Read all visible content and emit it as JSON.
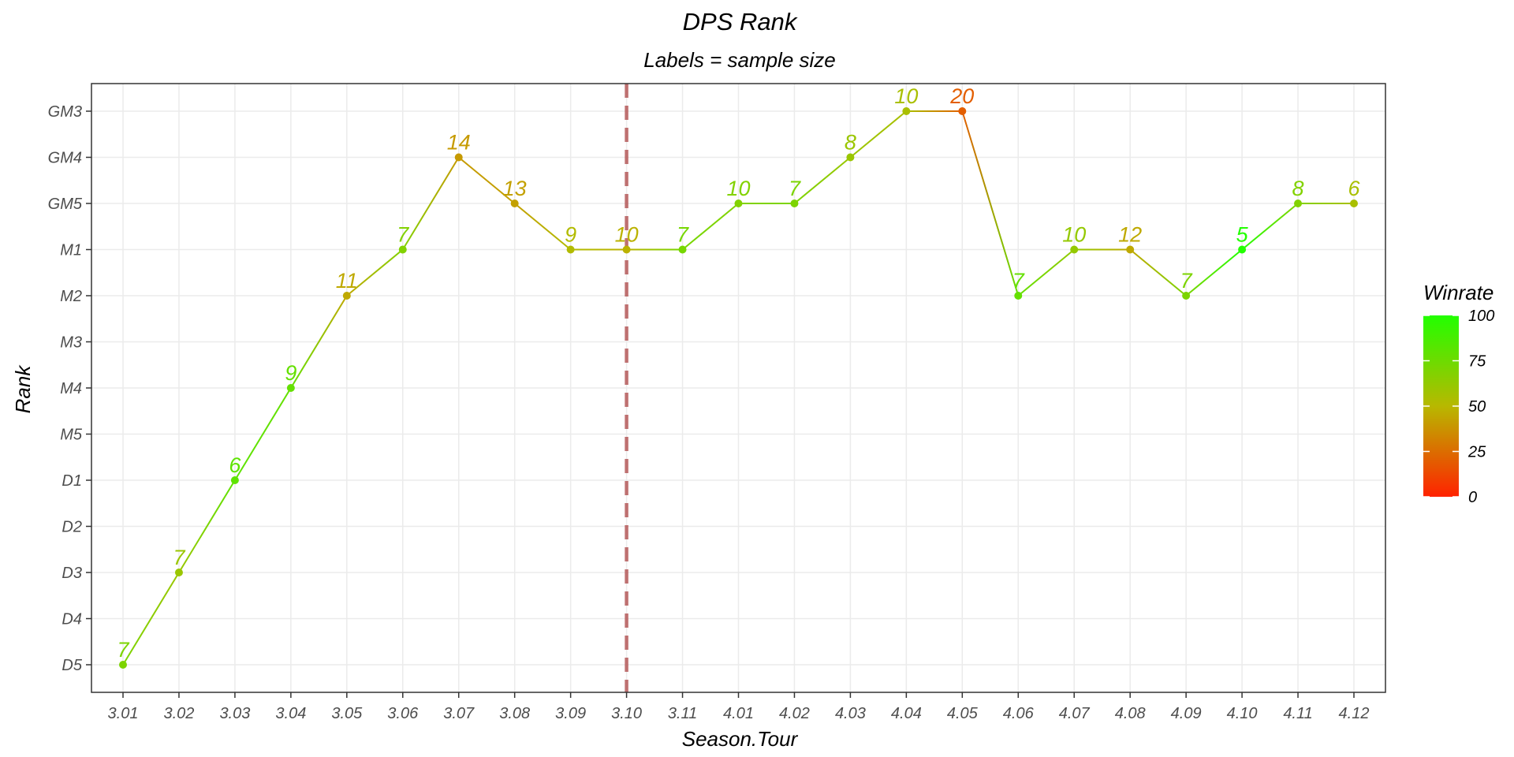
{
  "chart_data": {
    "type": "line",
    "title": "DPS Rank",
    "subtitle": "Labels = sample size",
    "xlabel": "Season.Tour",
    "ylabel": "Rank",
    "categories": [
      "3.01",
      "3.02",
      "3.03",
      "3.04",
      "3.05",
      "3.06",
      "3.07",
      "3.08",
      "3.09",
      "3.10",
      "3.11",
      "4.01",
      "4.02",
      "4.03",
      "4.04",
      "4.05",
      "4.06",
      "4.07",
      "4.08",
      "4.09",
      "4.10",
      "4.11",
      "4.12"
    ],
    "rank_levels": [
      "D5",
      "D4",
      "D3",
      "D2",
      "D1",
      "M5",
      "M4",
      "M3",
      "M2",
      "M1",
      "GM5",
      "GM4",
      "GM3"
    ],
    "rank": [
      "D5",
      "D3",
      "D1",
      "M4",
      "M2",
      "M1",
      "GM4",
      "GM5",
      "M1",
      "M1",
      "M1",
      "GM5",
      "GM5",
      "GM4",
      "GM3",
      "GM3",
      "M2",
      "M1",
      "M1",
      "M2",
      "M1",
      "GM5",
      "GM5"
    ],
    "sample_size": [
      7,
      7,
      6,
      9,
      11,
      7,
      14,
      13,
      9,
      10,
      7,
      10,
      7,
      8,
      10,
      20,
      7,
      10,
      12,
      7,
      5,
      8,
      6
    ],
    "winrate": [
      70,
      60,
      80,
      78,
      45,
      68,
      40,
      42,
      52,
      48,
      72,
      68,
      70,
      60,
      55,
      20,
      78,
      62,
      45,
      70,
      100,
      68,
      55
    ],
    "reference_line": {
      "x": "3.10",
      "style": "dashed",
      "color": "#b55a5a"
    },
    "legend": {
      "title": "Winrate",
      "placement": "right",
      "ticks": [
        "100",
        "75",
        "50",
        "25",
        "0"
      ],
      "tick_values": [
        100,
        75,
        50,
        25,
        0
      ],
      "range": [
        0,
        100
      ],
      "low_color": "#ff2200",
      "mid_color": "#b8b800",
      "high_color": "#22ff00"
    },
    "grid": true,
    "panel_border": true
  }
}
